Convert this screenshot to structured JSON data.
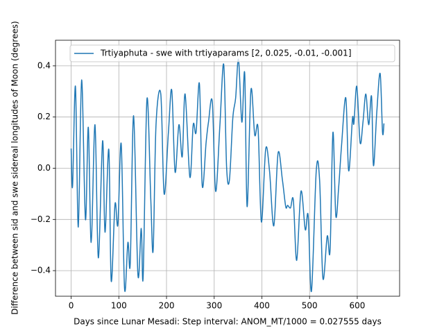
{
  "chart_data": {
    "type": "line",
    "xlabel": "Days since Lunar Mesadi: Step interval: ANOM_MT/1000 = 0.027555 days",
    "ylabel": "Difference between sid and swe sidereal longitudes of Moon (degrees)",
    "x": [
      0,
      3,
      9,
      15,
      22,
      30,
      36,
      42,
      50,
      57,
      66,
      71,
      79,
      84,
      92,
      98,
      105,
      112,
      119,
      124,
      131,
      140,
      147,
      151,
      159,
      167,
      172,
      178,
      188,
      195,
      204,
      211,
      218,
      226,
      233,
      239,
      249,
      256,
      262,
      269,
      275,
      283,
      288,
      296,
      303,
      312,
      320,
      326,
      332,
      339,
      345,
      351,
      358,
      364,
      369,
      377,
      385,
      392,
      399,
      408,
      416,
      425,
      434,
      443,
      450,
      454,
      460,
      466,
      473,
      482,
      491,
      497,
      504,
      514,
      521,
      528,
      537,
      543,
      549,
      555,
      561,
      567,
      576,
      582,
      590,
      593,
      599,
      606,
      612,
      618,
      624,
      630,
      634,
      641,
      648,
      653,
      656
    ],
    "series": [
      {
        "name": "Trtiyaphuta - swe with trtiyaparams [2, 0.025, -0.01, -0.001]",
        "color": "#1f77b4",
        "values": [
          0.077,
          -0.07,
          0.32,
          -0.23,
          0.345,
          -0.2,
          0.16,
          -0.29,
          0.17,
          -0.35,
          0.107,
          -0.25,
          0.073,
          -0.44,
          -0.14,
          -0.22,
          0.095,
          -0.47,
          -0.29,
          -0.37,
          0.205,
          -0.415,
          -0.235,
          -0.425,
          0.27,
          -0.12,
          -0.32,
          0.17,
          0.29,
          -0.1,
          0.14,
          0.305,
          -0.015,
          0.17,
          0.045,
          0.29,
          -0.035,
          0.17,
          0.14,
          0.33,
          -0.07,
          0.1,
          0.18,
          0.26,
          -0.09,
          0.17,
          0.405,
          0.005,
          -0.045,
          0.195,
          0.275,
          0.425,
          0.18,
          0.37,
          -0.15,
          0.305,
          0.13,
          0.155,
          -0.21,
          0.075,
          -0.01,
          -0.225,
          0.06,
          -0.045,
          -0.15,
          -0.145,
          -0.155,
          -0.125,
          -0.36,
          -0.09,
          -0.24,
          -0.185,
          -0.48,
          -0.01,
          -0.045,
          -0.43,
          -0.265,
          -0.32,
          0.14,
          -0.185,
          -0.075,
          0.087,
          0.275,
          -0.01,
          0.195,
          0.175,
          0.32,
          0.1,
          0.18,
          0.29,
          0.17,
          0.28,
          0.01,
          0.22,
          0.37,
          0.14,
          0.175
        ]
      }
    ],
    "xlim": [
      -32.8,
      688.8
    ],
    "ylim": [
      -0.5,
      0.5
    ],
    "xticks": [
      0,
      100,
      200,
      300,
      400,
      500,
      600
    ],
    "yticks": [
      {
        "value": -0.4,
        "label": "−0.4"
      },
      {
        "value": -0.2,
        "label": "−0.2"
      },
      {
        "value": 0,
        "label": "0.0"
      },
      0.2,
      0.4
    ],
    "grid": true,
    "legend": "upper right"
  }
}
